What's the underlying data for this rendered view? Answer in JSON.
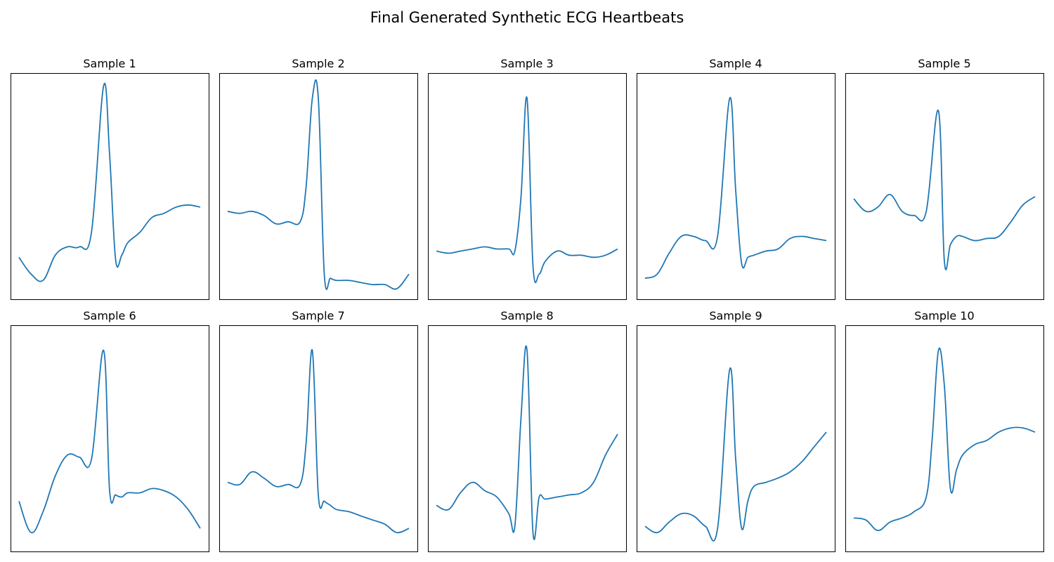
{
  "figure": {
    "title": "Final Generated Synthetic ECG Heartbeats"
  },
  "style": {
    "line_color": "#1f77b4",
    "frame_color": "#000000",
    "background": "#ffffff"
  },
  "chart_data": [
    {
      "type": "line",
      "title": "Sample 1",
      "grid": false,
      "xticks": false,
      "yticks": false,
      "x": [
        0,
        0.067,
        0.133,
        0.2,
        0.267,
        0.333,
        0.4,
        0.467,
        0.5,
        0.533,
        0.567,
        0.6,
        0.667,
        0.733,
        0.8,
        0.867,
        0.933,
        1
      ],
      "series": [
        {
          "values": [
            0.16,
            0.08,
            0.05,
            0.17,
            0.21,
            0.21,
            0.28,
            0.98,
            0.65,
            0.15,
            0.17,
            0.23,
            0.28,
            0.35,
            0.37,
            0.4,
            0.41,
            0.4
          ]
        }
      ]
    },
    {
      "type": "line",
      "title": "Sample 2",
      "grid": false,
      "xticks": false,
      "yticks": false,
      "x": [
        0,
        0.067,
        0.133,
        0.2,
        0.267,
        0.333,
        0.4,
        0.433,
        0.467,
        0.5,
        0.533,
        0.567,
        0.6,
        0.667,
        0.733,
        0.8,
        0.867,
        0.933,
        1
      ],
      "series": [
        {
          "values": [
            0.38,
            0.37,
            0.38,
            0.36,
            0.32,
            0.33,
            0.33,
            0.5,
            0.92,
            0.92,
            0.08,
            0.06,
            0.05,
            0.05,
            0.04,
            0.03,
            0.03,
            0.01,
            0.08
          ]
        }
      ]
    },
    {
      "type": "line",
      "title": "Sample 3",
      "grid": false,
      "xticks": false,
      "yticks": false,
      "x": [
        0,
        0.067,
        0.133,
        0.2,
        0.267,
        0.333,
        0.4,
        0.433,
        0.467,
        0.5,
        0.533,
        0.567,
        0.6,
        0.667,
        0.733,
        0.8,
        0.867,
        0.933,
        1
      ],
      "series": [
        {
          "values": [
            0.19,
            0.18,
            0.19,
            0.2,
            0.21,
            0.2,
            0.2,
            0.19,
            0.45,
            0.92,
            0.12,
            0.08,
            0.14,
            0.19,
            0.17,
            0.17,
            0.16,
            0.17,
            0.2
          ]
        }
      ]
    },
    {
      "type": "line",
      "title": "Sample 4",
      "grid": false,
      "xticks": false,
      "yticks": false,
      "x": [
        0,
        0.067,
        0.133,
        0.2,
        0.267,
        0.333,
        0.4,
        0.467,
        0.5,
        0.533,
        0.567,
        0.6,
        0.667,
        0.733,
        0.8,
        0.867,
        0.933,
        1
      ],
      "series": [
        {
          "values": [
            0.06,
            0.08,
            0.18,
            0.26,
            0.26,
            0.24,
            0.26,
            0.92,
            0.48,
            0.13,
            0.16,
            0.17,
            0.19,
            0.2,
            0.25,
            0.26,
            0.25,
            0.24
          ]
        }
      ]
    },
    {
      "type": "line",
      "title": "Sample 5",
      "grid": false,
      "xticks": false,
      "yticks": false,
      "x": [
        0,
        0.067,
        0.133,
        0.2,
        0.267,
        0.333,
        0.4,
        0.467,
        0.5,
        0.533,
        0.567,
        0.6,
        0.667,
        0.733,
        0.8,
        0.867,
        0.933,
        1
      ],
      "series": [
        {
          "values": [
            0.44,
            0.38,
            0.4,
            0.46,
            0.38,
            0.36,
            0.38,
            0.86,
            0.14,
            0.22,
            0.26,
            0.26,
            0.24,
            0.25,
            0.26,
            0.33,
            0.41,
            0.45
          ]
        }
      ]
    },
    {
      "type": "line",
      "title": "Sample 6",
      "grid": false,
      "xticks": false,
      "yticks": false,
      "x": [
        0,
        0.067,
        0.133,
        0.2,
        0.267,
        0.333,
        0.4,
        0.467,
        0.5,
        0.533,
        0.567,
        0.6,
        0.667,
        0.733,
        0.8,
        0.867,
        0.933,
        1
      ],
      "series": [
        {
          "values": [
            0.2,
            0.05,
            0.15,
            0.32,
            0.42,
            0.41,
            0.4,
            0.92,
            0.25,
            0.23,
            0.22,
            0.24,
            0.24,
            0.26,
            0.25,
            0.22,
            0.16,
            0.07
          ]
        }
      ]
    },
    {
      "type": "line",
      "title": "Sample 7",
      "grid": false,
      "xticks": false,
      "yticks": false,
      "x": [
        0,
        0.067,
        0.133,
        0.2,
        0.267,
        0.333,
        0.4,
        0.433,
        0.467,
        0.5,
        0.533,
        0.567,
        0.6,
        0.667,
        0.733,
        0.8,
        0.867,
        0.933,
        1
      ],
      "series": [
        {
          "values": [
            0.29,
            0.28,
            0.34,
            0.31,
            0.27,
            0.28,
            0.28,
            0.48,
            0.92,
            0.23,
            0.2,
            0.18,
            0.16,
            0.15,
            0.13,
            0.11,
            0.09,
            0.05,
            0.07
          ]
        }
      ]
    },
    {
      "type": "line",
      "title": "Sample 8",
      "grid": false,
      "xticks": false,
      "yticks": false,
      "x": [
        0,
        0.067,
        0.133,
        0.2,
        0.267,
        0.333,
        0.4,
        0.433,
        0.467,
        0.5,
        0.533,
        0.567,
        0.6,
        0.667,
        0.733,
        0.8,
        0.867,
        0.933,
        1
      ],
      "series": [
        {
          "values": [
            0.18,
            0.16,
            0.24,
            0.29,
            0.25,
            0.22,
            0.14,
            0.08,
            0.6,
            0.92,
            0.05,
            0.22,
            0.21,
            0.22,
            0.23,
            0.24,
            0.29,
            0.42,
            0.52
          ]
        }
      ]
    },
    {
      "type": "line",
      "title": "Sample 9",
      "grid": false,
      "xticks": false,
      "yticks": false,
      "x": [
        0,
        0.067,
        0.133,
        0.2,
        0.267,
        0.333,
        0.4,
        0.467,
        0.5,
        0.533,
        0.567,
        0.6,
        0.667,
        0.733,
        0.8,
        0.867,
        0.933,
        1
      ],
      "series": [
        {
          "values": [
            0.08,
            0.05,
            0.1,
            0.14,
            0.13,
            0.08,
            0.07,
            0.83,
            0.4,
            0.07,
            0.2,
            0.27,
            0.29,
            0.31,
            0.34,
            0.39,
            0.46,
            0.53
          ]
        }
      ]
    },
    {
      "type": "line",
      "title": "Sample 10",
      "grid": false,
      "xticks": false,
      "yticks": false,
      "x": [
        0,
        0.067,
        0.133,
        0.2,
        0.267,
        0.333,
        0.4,
        0.433,
        0.467,
        0.5,
        0.533,
        0.567,
        0.6,
        0.667,
        0.733,
        0.8,
        0.867,
        0.933,
        1
      ],
      "series": [
        {
          "values": [
            0.12,
            0.11,
            0.06,
            0.1,
            0.12,
            0.15,
            0.22,
            0.5,
            0.92,
            0.75,
            0.26,
            0.35,
            0.42,
            0.47,
            0.49,
            0.53,
            0.55,
            0.55,
            0.53
          ]
        }
      ]
    }
  ]
}
